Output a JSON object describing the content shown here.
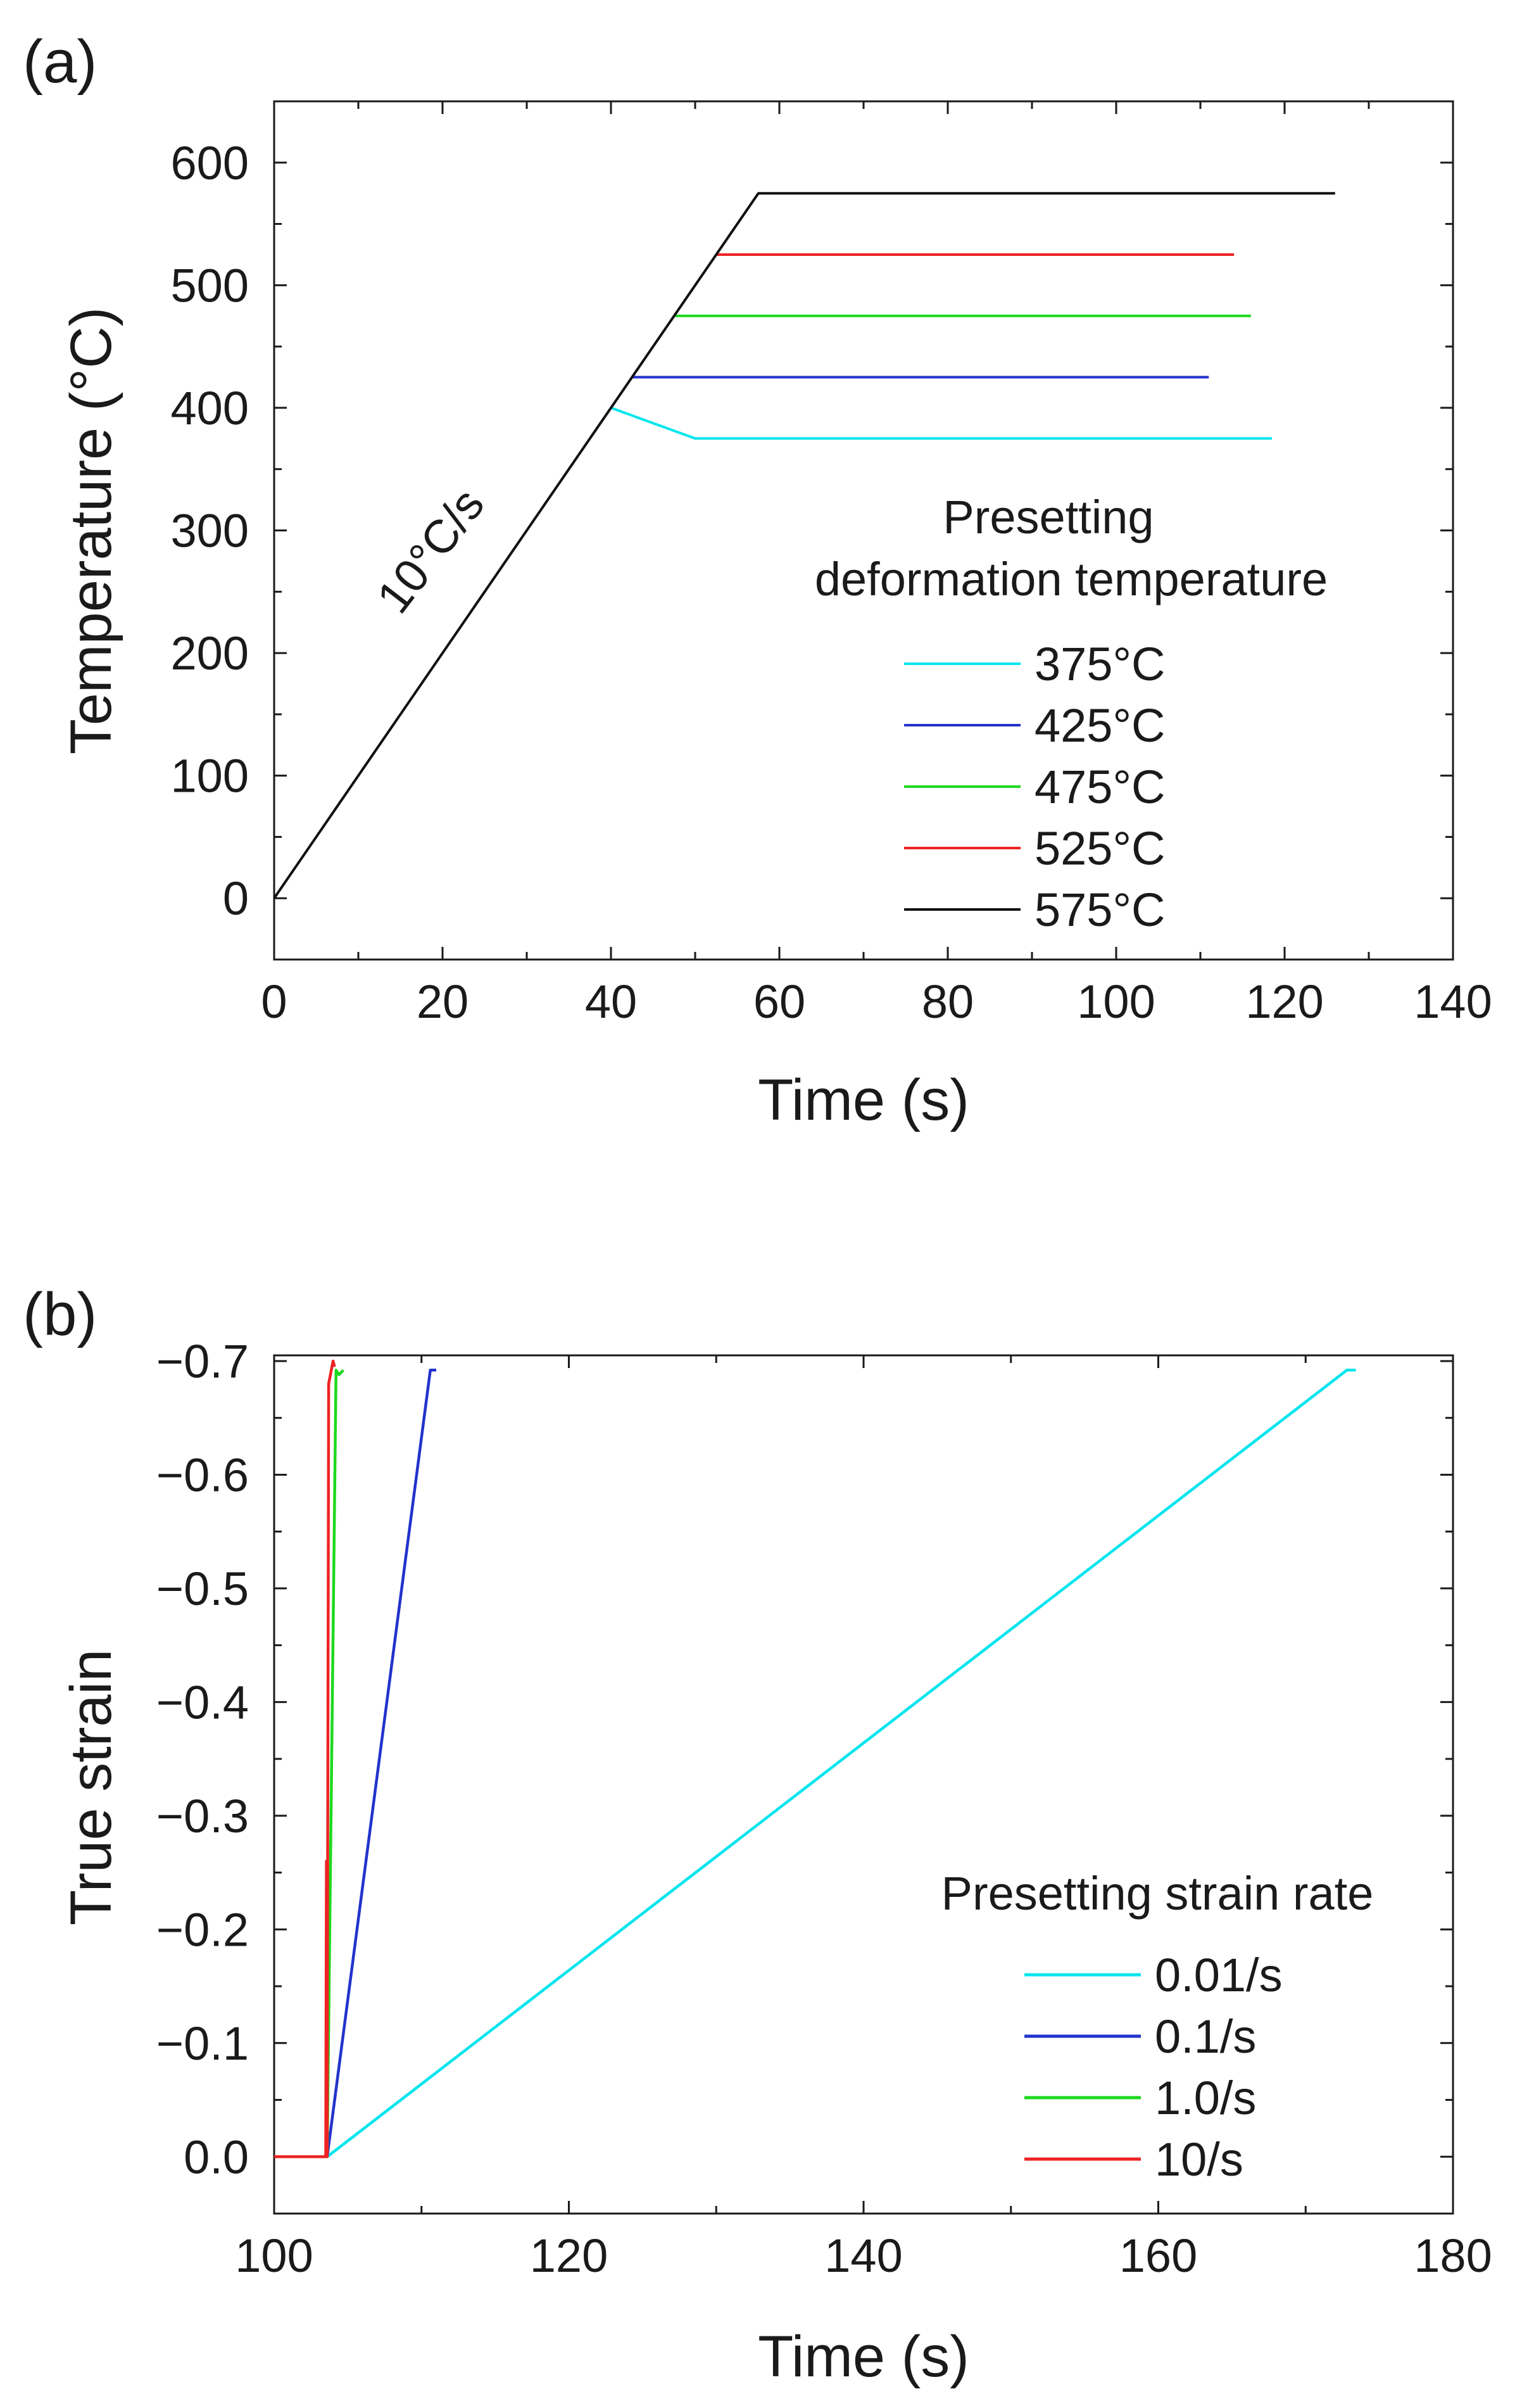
{
  "chart_data": [
    {
      "type": "line",
      "panel_label": "(a)",
      "xlabel": "Time (s)",
      "ylabel": "Temperature (°C)",
      "xlim": [
        0,
        140
      ],
      "ylim": [
        -50,
        650
      ],
      "xticks": [
        0,
        20,
        40,
        60,
        80,
        100,
        120,
        140
      ],
      "yticks": [
        0,
        100,
        200,
        300,
        400,
        500,
        600
      ],
      "grid": false,
      "annotation": "10°C/s",
      "legend_title_line1": "Presetting",
      "legend_title_line2": "deformation temperature",
      "legend_position": "center-right",
      "series": [
        {
          "name": "375°C",
          "color": "#00e5ee",
          "x": [
            40,
            50,
            118.5
          ],
          "y": [
            400,
            375,
            375
          ]
        },
        {
          "name": "425°C",
          "color": "#2233cc",
          "x": [
            42.5,
            111
          ],
          "y": [
            425,
            425
          ]
        },
        {
          "name": "475°C",
          "color": "#1ed81e",
          "x": [
            47.5,
            116
          ],
          "y": [
            475,
            475
          ]
        },
        {
          "name": "525°C",
          "color": "#ee2222",
          "x": [
            52.5,
            114
          ],
          "y": [
            525,
            525
          ]
        },
        {
          "name": "575°C",
          "color": "#111111",
          "x": [
            0,
            57.5,
            126
          ],
          "y": [
            0,
            575,
            575
          ]
        }
      ]
    },
    {
      "type": "line",
      "panel_label": "(b)",
      "xlabel": "Time (s)",
      "ylabel": "True strain",
      "xlim": [
        100,
        180
      ],
      "ylim": [
        0.05,
        -0.705
      ],
      "xticks": [
        100,
        120,
        140,
        160,
        180
      ],
      "yticks": [
        0.0,
        -0.1,
        -0.2,
        -0.3,
        -0.4,
        -0.5,
        -0.6,
        -0.7
      ],
      "ytick_labels": [
        "0.0",
        "−0.1",
        "−0.2",
        "−0.3",
        "−0.4",
        "−0.5",
        "−0.6",
        "−0.7"
      ],
      "grid": false,
      "legend_title": "Presetting strain rate",
      "legend_position": "center-right",
      "series": [
        {
          "name": "0.01/s",
          "color": "#00e5ee",
          "x": [
            103.6,
            172.8,
            173.4
          ],
          "y": [
            0.0,
            -0.692,
            -0.692
          ]
        },
        {
          "name": "0.1/s",
          "color": "#2233cc",
          "x": [
            103.6,
            110.6,
            111.0
          ],
          "y": [
            0.0,
            -0.692,
            -0.692
          ]
        },
        {
          "name": "1.0/s",
          "color": "#1ed81e",
          "x": [
            103.6,
            104.2,
            104.4,
            104.7
          ],
          "y": [
            0.0,
            -0.692,
            -0.688,
            -0.692
          ]
        },
        {
          "name": "10/s",
          "color": "#ee2222",
          "x": [
            100.0,
            103.5,
            103.55,
            103.6,
            103.62,
            103.7,
            104.0,
            104.1
          ],
          "y": [
            0.0,
            0.0,
            -0.26,
            -0.0,
            -0.2,
            -0.68,
            -0.7,
            -0.695
          ]
        }
      ]
    }
  ]
}
